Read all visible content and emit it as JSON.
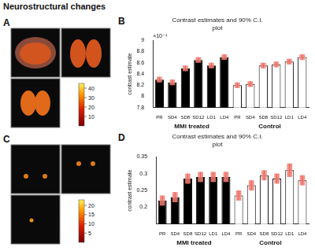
{
  "title": "Neurostructural changes",
  "image_panels": [
    {
      "letter": "A",
      "colorbar_range": [
        0,
        45
      ],
      "colorbar_ticks": [
        10,
        20,
        30,
        40
      ]
    },
    {
      "letter": "C",
      "colorbar_range": [
        0,
        23
      ],
      "colorbar_ticks": [
        5,
        10,
        15,
        20
      ]
    }
  ],
  "chart_data": [
    {
      "letter": "B",
      "type": "bar",
      "title": "Contrast estimates and 90% C.I. plot",
      "ylabel": "contrast estimate",
      "annotation": "×10⁻⁴",
      "categories": [
        "PR",
        "SD4",
        "SD8",
        "SD12",
        "LD1",
        "LD4",
        "PR",
        "SD4",
        "SD8",
        "SD12",
        "LD1",
        "LD4"
      ],
      "series": [
        {
          "name": "MMI treated",
          "color": "#000000",
          "values": [
            8.3,
            8.25,
            8.5,
            8.65,
            8.55,
            8.7,
            null,
            null,
            null,
            null,
            null,
            null
          ],
          "errors": [
            0.05,
            0.05,
            0.05,
            0.05,
            0.05,
            0.05,
            null,
            null,
            null,
            null,
            null,
            null
          ]
        },
        {
          "name": "Control",
          "color": "#ffffff",
          "values": [
            null,
            null,
            null,
            null,
            null,
            null,
            8.2,
            8.22,
            8.55,
            8.57,
            8.62,
            8.7
          ],
          "errors": [
            null,
            null,
            null,
            null,
            null,
            null,
            0.05,
            0.05,
            0.05,
            0.05,
            0.05,
            0.05
          ]
        }
      ],
      "ylim": [
        7.8,
        9
      ],
      "yticks": [
        7.8,
        8,
        8.2,
        8.4,
        8.6,
        8.8,
        9
      ],
      "grid": false
    },
    {
      "letter": "D",
      "type": "bar",
      "title": "Contrast estimates and 90% C.I. plot",
      "ylabel": "contrast estimate",
      "categories": [
        "PR",
        "SD4",
        "SD8",
        "SD12",
        "LD1",
        "LD4",
        "PR",
        "SD4",
        "SD8",
        "SD12",
        "LD1",
        "LD4"
      ],
      "series": [
        {
          "name": "MMI treated",
          "color": "#000000",
          "values": [
            0.22,
            0.23,
            0.285,
            0.29,
            0.29,
            0.29,
            null,
            null,
            null,
            null,
            null,
            null
          ],
          "errors": [
            0.015,
            0.015,
            0.015,
            0.015,
            0.015,
            0.015,
            null,
            null,
            null,
            null,
            null,
            null
          ]
        },
        {
          "name": "Control",
          "color": "#ffffff",
          "values": [
            null,
            null,
            null,
            null,
            null,
            null,
            0.235,
            0.265,
            0.295,
            0.285,
            0.31,
            0.28
          ],
          "errors": [
            null,
            null,
            null,
            null,
            null,
            null,
            0.015,
            0.015,
            0.015,
            0.015,
            0.02,
            0.015
          ]
        }
      ],
      "ylim": [
        0.15,
        0.35
      ],
      "yticks": [
        0.2,
        0.25,
        0.3,
        0.35
      ],
      "grid": false
    }
  ]
}
